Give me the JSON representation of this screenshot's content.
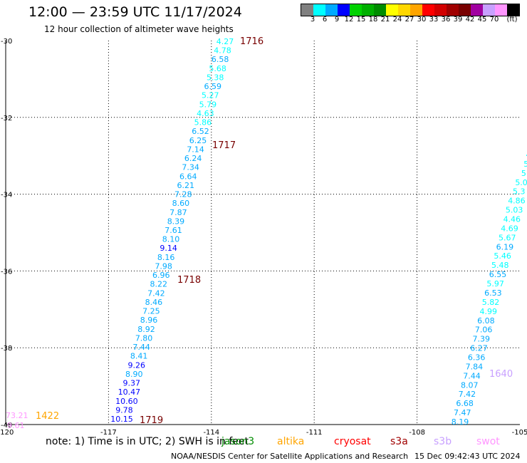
{
  "header": {
    "title": "12:00 — 23:59 UTC 11/17/2024",
    "subtitle": "12 hour collection of altimeter wave heights"
  },
  "legend": {
    "unit": "(ft)",
    "ticks": [
      "3",
      "6",
      "9",
      "12",
      "15",
      "18",
      "21",
      "24",
      "27",
      "30",
      "33",
      "36",
      "39",
      "42",
      "45",
      "70"
    ],
    "colors": [
      "#808080",
      "#00ffff",
      "#00aaff",
      "#0000ff",
      "#00d200",
      "#00b000",
      "#008c00",
      "#ffff00",
      "#ffd700",
      "#ffa500",
      "#ff0000",
      "#d20000",
      "#a00000",
      "#780000",
      "#a000a0",
      "#c8a0ff",
      "#ff96ff",
      "#000000"
    ]
  },
  "map": {
    "lon_range": [
      -120,
      -105
    ],
    "lat_range": [
      -40,
      -30
    ],
    "lon_ticks": [
      "-120",
      "-117",
      "-114",
      "-111",
      "-108",
      "-105"
    ],
    "lat_ticks": [
      "-30",
      "-32",
      "-34",
      "-36",
      "-38",
      "-40"
    ],
    "left_track": [
      {
        "v": "4.27",
        "c": "#00ffff"
      },
      {
        "v": "4.78",
        "c": "#00ffff"
      },
      {
        "v": "6.58",
        "c": "#00aaff"
      },
      {
        "v": "5.68",
        "c": "#00ffff"
      },
      {
        "v": "5.38",
        "c": "#00ffff"
      },
      {
        "v": "6.59",
        "c": "#00aaff"
      },
      {
        "v": "5.27",
        "c": "#00ffff"
      },
      {
        "v": "5.79",
        "c": "#00ffff"
      },
      {
        "v": "4.63",
        "c": "#00ffff"
      },
      {
        "v": "5.86",
        "c": "#00ffff"
      },
      {
        "v": "6.52",
        "c": "#00aaff"
      },
      {
        "v": "6.25",
        "c": "#00aaff"
      },
      {
        "v": "7.14",
        "c": "#00aaff"
      },
      {
        "v": "6.24",
        "c": "#00aaff"
      },
      {
        "v": "7.34",
        "c": "#00aaff"
      },
      {
        "v": "6.64",
        "c": "#00aaff"
      },
      {
        "v": "6.21",
        "c": "#00aaff"
      },
      {
        "v": "7.28",
        "c": "#00aaff"
      },
      {
        "v": "8.60",
        "c": "#00aaff"
      },
      {
        "v": "7.87",
        "c": "#00aaff"
      },
      {
        "v": "8.39",
        "c": "#00aaff"
      },
      {
        "v": "7.61",
        "c": "#00aaff"
      },
      {
        "v": "8.10",
        "c": "#00aaff"
      },
      {
        "v": "9.14",
        "c": "#0000ff"
      },
      {
        "v": "8.16",
        "c": "#00aaff"
      },
      {
        "v": "7.98",
        "c": "#00aaff"
      },
      {
        "v": "6.96",
        "c": "#00aaff"
      },
      {
        "v": "8.22",
        "c": "#00aaff"
      },
      {
        "v": "7.42",
        "c": "#00aaff"
      },
      {
        "v": "8.46",
        "c": "#00aaff"
      },
      {
        "v": "7.25",
        "c": "#00aaff"
      },
      {
        "v": "8.96",
        "c": "#00aaff"
      },
      {
        "v": "8.92",
        "c": "#00aaff"
      },
      {
        "v": "7.80",
        "c": "#00aaff"
      },
      {
        "v": "7.44",
        "c": "#00aaff"
      },
      {
        "v": "8.41",
        "c": "#00aaff"
      },
      {
        "v": "9.26",
        "c": "#0000ff"
      },
      {
        "v": "8.90",
        "c": "#00aaff"
      },
      {
        "v": "9.37",
        "c": "#0000ff"
      },
      {
        "v": "10.47",
        "c": "#0000ff"
      },
      {
        "v": "10.60",
        "c": "#0000ff"
      },
      {
        "v": "9.78",
        "c": "#0000ff"
      },
      {
        "v": "10.15",
        "c": "#0000ff"
      }
    ],
    "right_track": [
      {
        "v": "4",
        "c": "#00ffff"
      },
      {
        "v": "5",
        "c": "#00ffff"
      },
      {
        "v": "5",
        "c": "#00ffff"
      },
      {
        "v": "5.0",
        "c": "#00ffff"
      },
      {
        "v": "5.3",
        "c": "#00ffff"
      },
      {
        "v": "4.86",
        "c": "#00ffff"
      },
      {
        "v": "5.03",
        "c": "#00ffff"
      },
      {
        "v": "4.46",
        "c": "#00ffff"
      },
      {
        "v": "4.69",
        "c": "#00ffff"
      },
      {
        "v": "5.67",
        "c": "#00ffff"
      },
      {
        "v": "6.19",
        "c": "#00aaff"
      },
      {
        "v": "5.46",
        "c": "#00ffff"
      },
      {
        "v": "5.48",
        "c": "#00ffff"
      },
      {
        "v": "6.55",
        "c": "#00aaff"
      },
      {
        "v": "5.97",
        "c": "#00ffff"
      },
      {
        "v": "6.53",
        "c": "#00aaff"
      },
      {
        "v": "5.82",
        "c": "#00ffff"
      },
      {
        "v": "4.99",
        "c": "#00ffff"
      },
      {
        "v": "6.08",
        "c": "#00aaff"
      },
      {
        "v": "7.06",
        "c": "#00aaff"
      },
      {
        "v": "7.39",
        "c": "#00aaff"
      },
      {
        "v": "6.27",
        "c": "#00aaff"
      },
      {
        "v": "6.36",
        "c": "#00aaff"
      },
      {
        "v": "7.84",
        "c": "#00aaff"
      },
      {
        "v": "7.44",
        "c": "#00aaff"
      },
      {
        "v": "8.07",
        "c": "#00aaff"
      },
      {
        "v": "7.42",
        "c": "#00aaff"
      },
      {
        "v": "6.68",
        "c": "#00aaff"
      },
      {
        "v": "7.47",
        "c": "#00aaff"
      },
      {
        "v": "8.19",
        "c": "#00aaff"
      }
    ],
    "pass_labels": [
      {
        "text": "1716",
        "color": "#780000"
      },
      {
        "text": "1717",
        "color": "#780000"
      },
      {
        "text": "1718",
        "color": "#780000"
      },
      {
        "text": "1719",
        "color": "#780000"
      },
      {
        "text": "1640",
        "color": "#c8a0ff"
      },
      {
        "text": "1422",
        "color": "#ffa500"
      }
    ],
    "edge_values": [
      {
        "text": "73.21",
        "color": "#ff96ff"
      },
      {
        "text": "9.61",
        "color": "#ff96ff"
      }
    ]
  },
  "footer": {
    "note": "note:  1) Time is in UTC; 2) SWH is in feet",
    "satellites": [
      {
        "name": "jason3",
        "color": "#008c00"
      },
      {
        "name": "altika",
        "color": "#ffa500"
      },
      {
        "name": "cryosat",
        "color": "#ff0000"
      },
      {
        "name": "s3a",
        "color": "#a00000"
      },
      {
        "name": "s3b",
        "color": "#c8a0ff"
      },
      {
        "name": "swot",
        "color": "#ff96ff"
      }
    ],
    "credit": "NOAA/NESDIS Center for Satellite Applications and Research",
    "generated": "15 Dec 09:42:43 UTC 2024"
  }
}
